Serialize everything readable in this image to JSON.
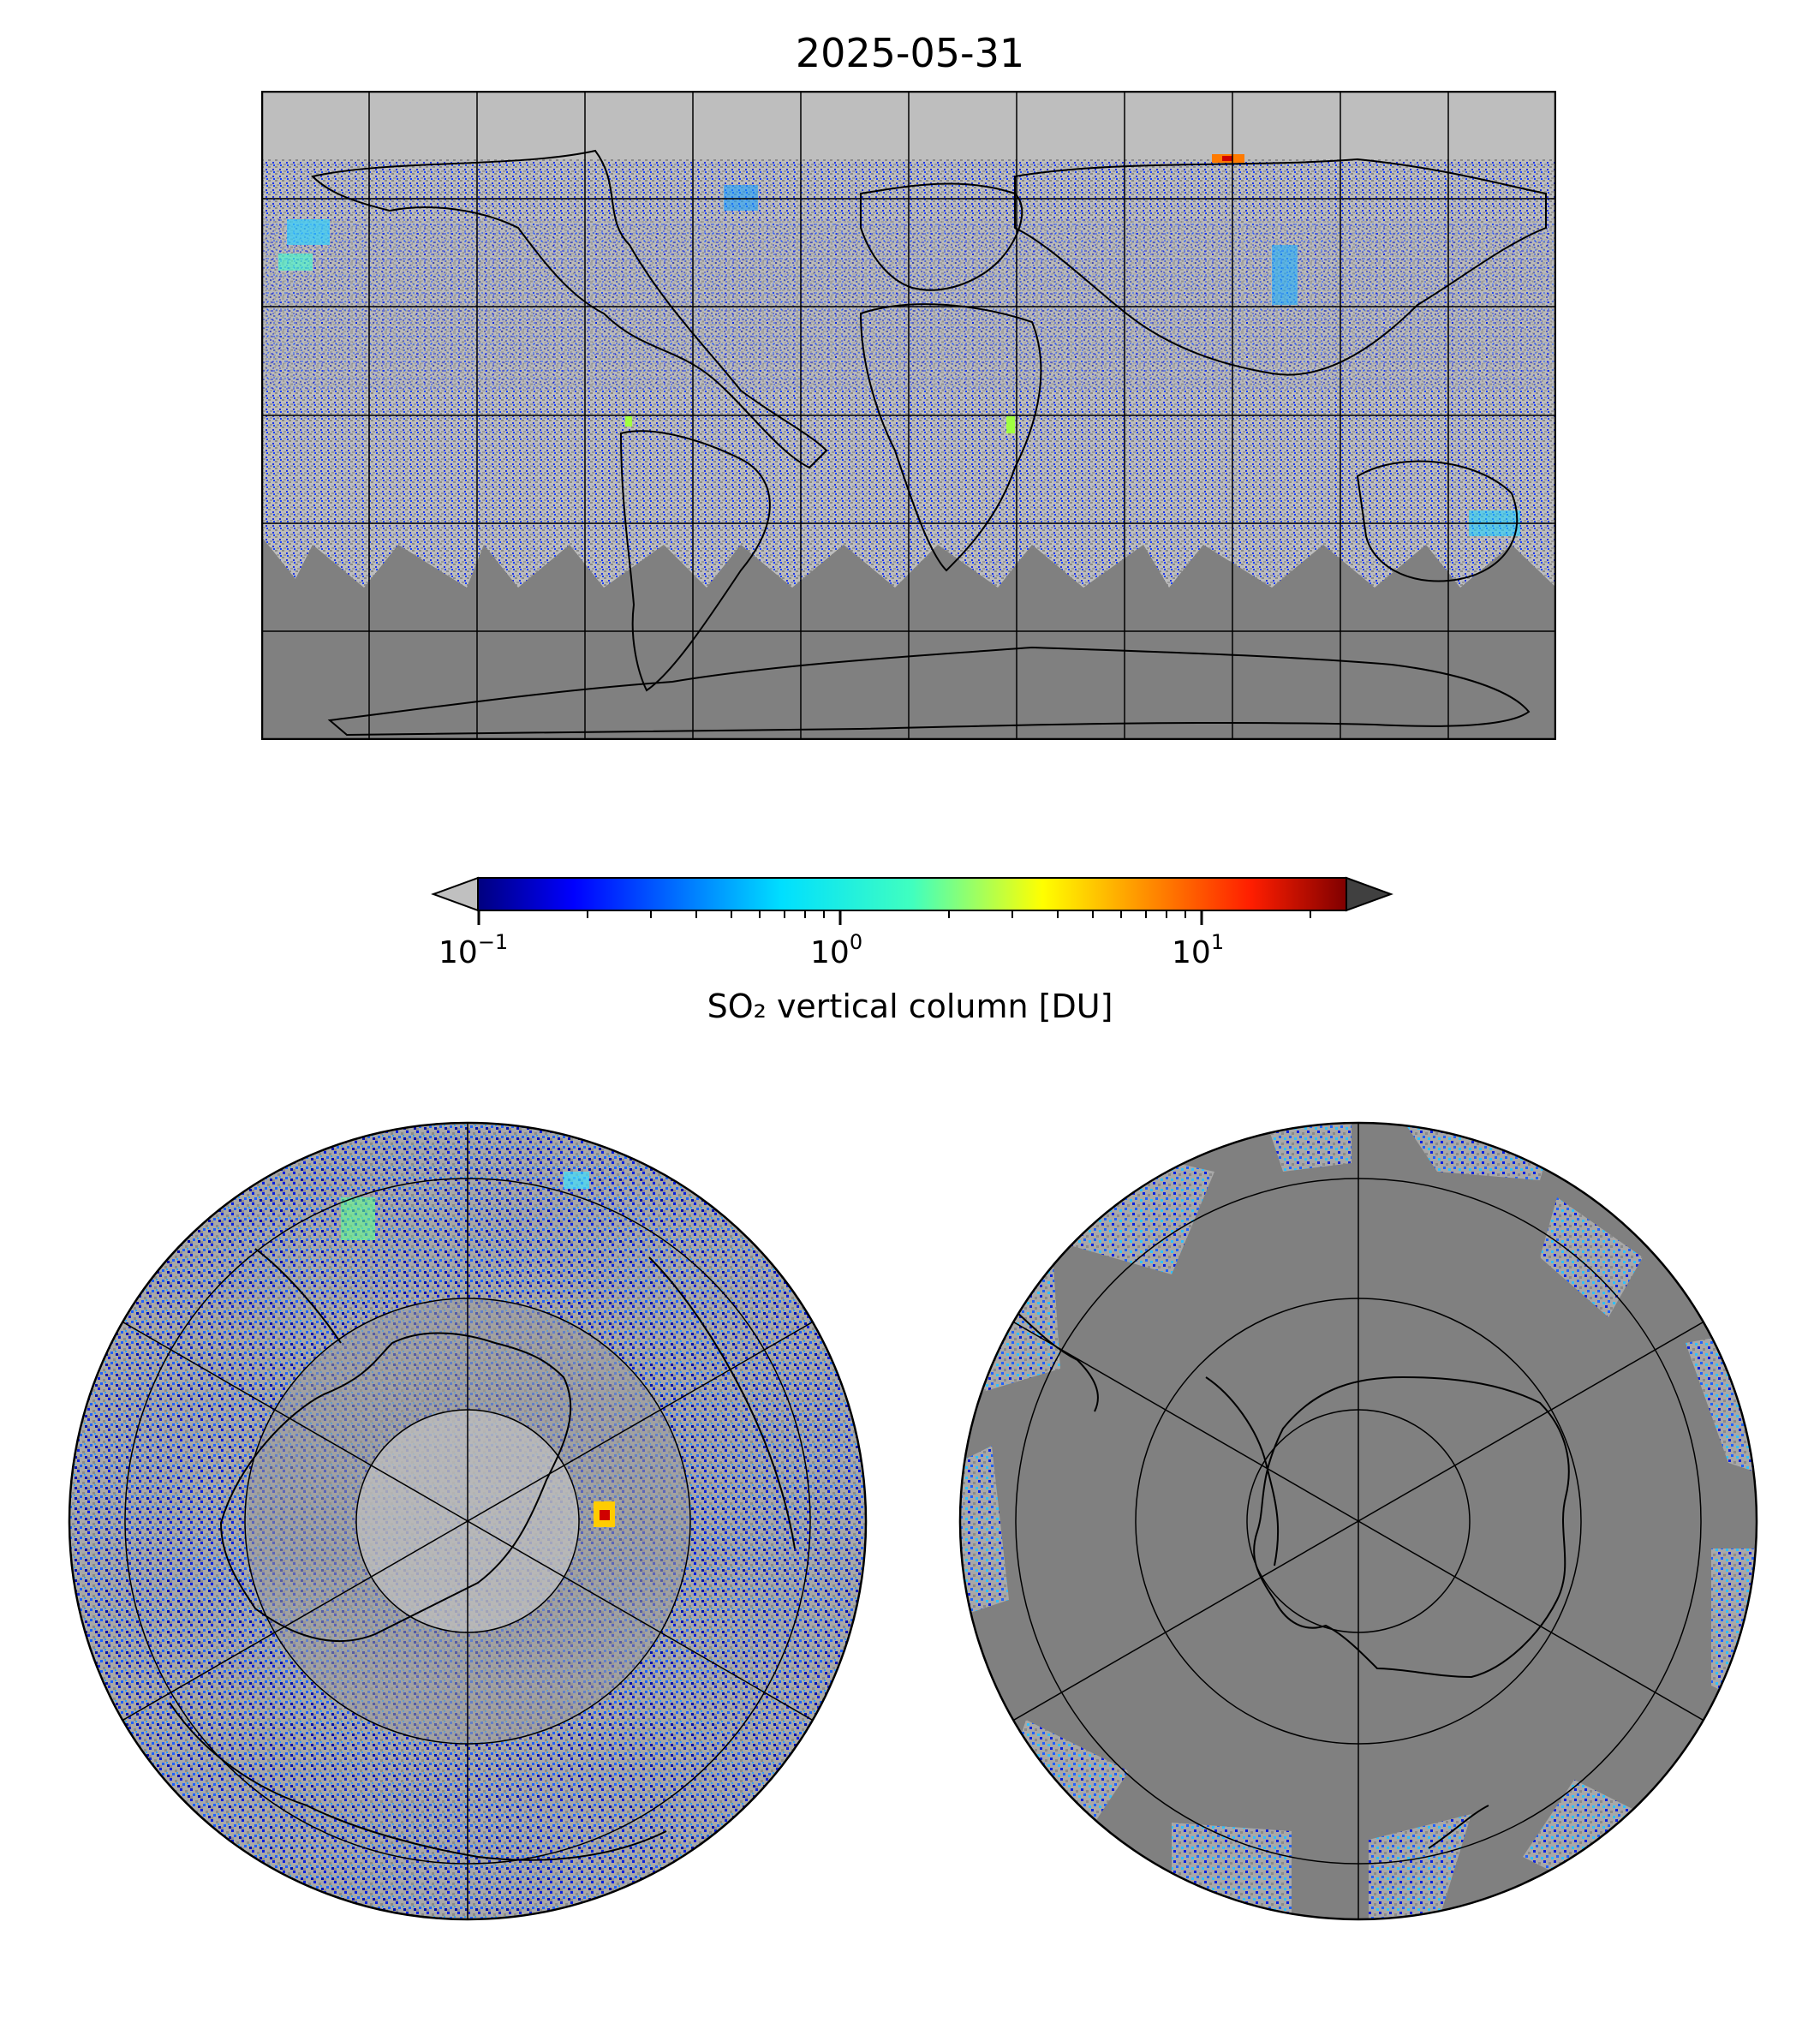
{
  "title": "2025-05-31",
  "colorbar": {
    "label": "SO₂ vertical column [DU]",
    "scale": "log",
    "colormap": "jet",
    "range": [
      0.1,
      24
    ],
    "extend": "both",
    "under_color": "#c0c0c0",
    "over_color": "#404040",
    "ticks": [
      {
        "base": "10",
        "exp": "−1"
      },
      {
        "base": "10",
        "exp": "0"
      },
      {
        "base": "10",
        "exp": "1"
      }
    ]
  },
  "maps": {
    "global": {
      "projection": "plate-carree",
      "gridlines": "30-degree"
    },
    "north": {
      "projection": "north-polar-stereographic"
    },
    "south": {
      "projection": "south-polar-stereographic"
    }
  },
  "colors": {
    "no_data": "#808080",
    "below_range": "#c0c0c0",
    "coastline": "#000000",
    "grid": "#000000"
  }
}
